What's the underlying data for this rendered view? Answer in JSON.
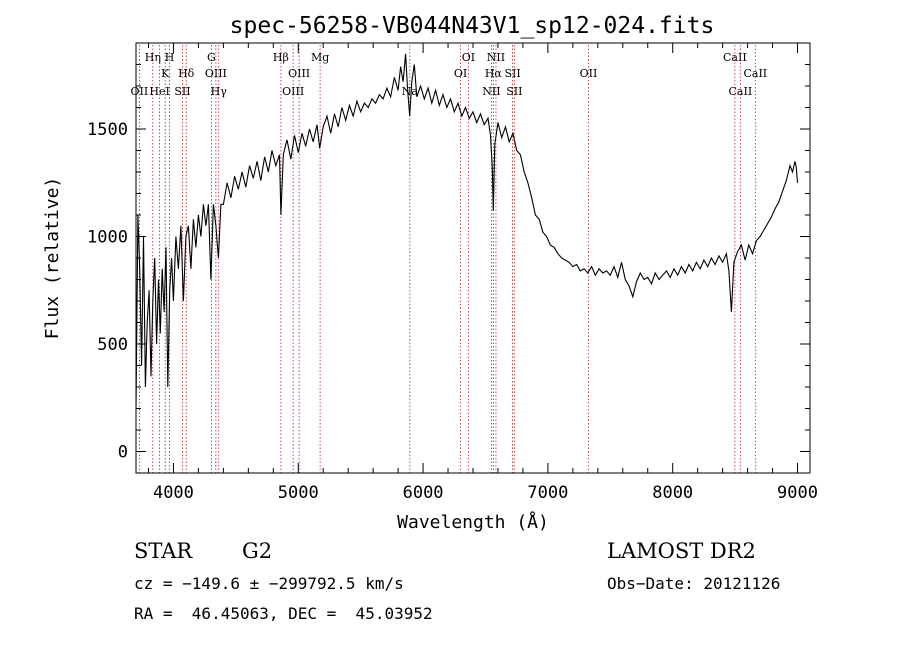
{
  "chart_data": {
    "type": "line",
    "title": "spec-56258-VB044N43V1_sp12-024.fits",
    "xlabel": "Wavelength (Å)",
    "ylabel": "Flux (relative)",
    "xlim": [
      3700,
      9100
    ],
    "ylim": [
      -100,
      1900
    ],
    "xticks": [
      4000,
      5000,
      6000,
      7000,
      8000,
      9000
    ],
    "yticks": [
      0,
      500,
      1000,
      1500
    ],
    "x_minor_step": 200,
    "y_minor_step": 100,
    "grid": false,
    "line_color": "#000000",
    "marker_color": "#b22222",
    "spectrum": [
      [
        3700,
        200
      ],
      [
        3715,
        1100
      ],
      [
        3730,
        850
      ],
      [
        3745,
        400
      ],
      [
        3760,
        1000
      ],
      [
        3775,
        300
      ],
      [
        3790,
        600
      ],
      [
        3805,
        750
      ],
      [
        3820,
        350
      ],
      [
        3835,
        700
      ],
      [
        3850,
        900
      ],
      [
        3865,
        500
      ],
      [
        3880,
        800
      ],
      [
        3895,
        550
      ],
      [
        3910,
        850
      ],
      [
        3925,
        650
      ],
      [
        3940,
        950
      ],
      [
        3955,
        300
      ],
      [
        3970,
        750
      ],
      [
        3985,
        900
      ],
      [
        4000,
        700
      ],
      [
        4020,
        1000
      ],
      [
        4040,
        850
      ],
      [
        4060,
        1050
      ],
      [
        4080,
        700
      ],
      [
        4100,
        1000
      ],
      [
        4120,
        1050
      ],
      [
        4140,
        850
      ],
      [
        4160,
        1080
      ],
      [
        4180,
        950
      ],
      [
        4200,
        1100
      ],
      [
        4220,
        1000
      ],
      [
        4240,
        1150
      ],
      [
        4260,
        1050
      ],
      [
        4280,
        1150
      ],
      [
        4300,
        800
      ],
      [
        4320,
        1150
      ],
      [
        4340,
        1050
      ],
      [
        4360,
        900
      ],
      [
        4380,
        1150
      ],
      [
        4400,
        1150
      ],
      [
        4430,
        1250
      ],
      [
        4460,
        1180
      ],
      [
        4490,
        1280
      ],
      [
        4520,
        1220
      ],
      [
        4550,
        1300
      ],
      [
        4580,
        1230
      ],
      [
        4610,
        1330
      ],
      [
        4640,
        1270
      ],
      [
        4670,
        1350
      ],
      [
        4700,
        1260
      ],
      [
        4730,
        1370
      ],
      [
        4760,
        1300
      ],
      [
        4790,
        1400
      ],
      [
        4820,
        1330
      ],
      [
        4850,
        1380
      ],
      [
        4861,
        1100
      ],
      [
        4880,
        1380
      ],
      [
        4910,
        1450
      ],
      [
        4940,
        1360
      ],
      [
        4970,
        1470
      ],
      [
        5000,
        1390
      ],
      [
        5030,
        1480
      ],
      [
        5060,
        1420
      ],
      [
        5090,
        1500
      ],
      [
        5120,
        1440
      ],
      [
        5150,
        1520
      ],
      [
        5172,
        1410
      ],
      [
        5200,
        1510
      ],
      [
        5230,
        1560
      ],
      [
        5260,
        1480
      ],
      [
        5290,
        1570
      ],
      [
        5320,
        1510
      ],
      [
        5350,
        1600
      ],
      [
        5380,
        1540
      ],
      [
        5410,
        1610
      ],
      [
        5440,
        1560
      ],
      [
        5470,
        1630
      ],
      [
        5500,
        1580
      ],
      [
        5530,
        1620
      ],
      [
        5560,
        1600
      ],
      [
        5590,
        1640
      ],
      [
        5620,
        1620
      ],
      [
        5650,
        1660
      ],
      [
        5680,
        1640
      ],
      [
        5710,
        1690
      ],
      [
        5740,
        1650
      ],
      [
        5770,
        1740
      ],
      [
        5800,
        1680
      ],
      [
        5820,
        1790
      ],
      [
        5840,
        1720
      ],
      [
        5860,
        1850
      ],
      [
        5875,
        1690
      ],
      [
        5893,
        1560
      ],
      [
        5910,
        1720
      ],
      [
        5930,
        1800
      ],
      [
        5950,
        1650
      ],
      [
        5980,
        1700
      ],
      [
        6010,
        1640
      ],
      [
        6040,
        1690
      ],
      [
        6070,
        1620
      ],
      [
        6100,
        1680
      ],
      [
        6130,
        1610
      ],
      [
        6160,
        1660
      ],
      [
        6190,
        1600
      ],
      [
        6220,
        1640
      ],
      [
        6250,
        1580
      ],
      [
        6280,
        1620
      ],
      [
        6310,
        1560
      ],
      [
        6340,
        1600
      ],
      [
        6370,
        1550
      ],
      [
        6400,
        1580
      ],
      [
        6430,
        1530
      ],
      [
        6460,
        1570
      ],
      [
        6490,
        1520
      ],
      [
        6520,
        1550
      ],
      [
        6540,
        1470
      ],
      [
        6555,
        1320
      ],
      [
        6563,
        1120
      ],
      [
        6575,
        1430
      ],
      [
        6600,
        1530
      ],
      [
        6630,
        1460
      ],
      [
        6660,
        1510
      ],
      [
        6690,
        1440
      ],
      [
        6720,
        1480
      ],
      [
        6750,
        1400
      ],
      [
        6780,
        1380
      ],
      [
        6810,
        1300
      ],
      [
        6840,
        1250
      ],
      [
        6870,
        1180
      ],
      [
        6900,
        1100
      ],
      [
        6930,
        1080
      ],
      [
        6960,
        1020
      ],
      [
        6990,
        1000
      ],
      [
        7020,
        960
      ],
      [
        7050,
        950
      ],
      [
        7080,
        920
      ],
      [
        7110,
        900
      ],
      [
        7140,
        890
      ],
      [
        7170,
        880
      ],
      [
        7200,
        860
      ],
      [
        7230,
        870
      ],
      [
        7260,
        840
      ],
      [
        7290,
        850
      ],
      [
        7320,
        830
      ],
      [
        7350,
        860
      ],
      [
        7380,
        820
      ],
      [
        7410,
        850
      ],
      [
        7440,
        830
      ],
      [
        7470,
        840
      ],
      [
        7500,
        820
      ],
      [
        7530,
        860
      ],
      [
        7560,
        810
      ],
      [
        7590,
        880
      ],
      [
        7620,
        800
      ],
      [
        7650,
        770
      ],
      [
        7680,
        720
      ],
      [
        7710,
        790
      ],
      [
        7740,
        830
      ],
      [
        7770,
        800
      ],
      [
        7800,
        810
      ],
      [
        7830,
        780
      ],
      [
        7860,
        830
      ],
      [
        7890,
        800
      ],
      [
        7920,
        820
      ],
      [
        7950,
        840
      ],
      [
        7980,
        810
      ],
      [
        8010,
        850
      ],
      [
        8040,
        820
      ],
      [
        8070,
        860
      ],
      [
        8100,
        830
      ],
      [
        8130,
        870
      ],
      [
        8160,
        840
      ],
      [
        8190,
        880
      ],
      [
        8220,
        850
      ],
      [
        8250,
        890
      ],
      [
        8280,
        860
      ],
      [
        8310,
        900
      ],
      [
        8340,
        870
      ],
      [
        8370,
        910
      ],
      [
        8400,
        880
      ],
      [
        8430,
        920
      ],
      [
        8450,
        840
      ],
      [
        8470,
        650
      ],
      [
        8490,
        880
      ],
      [
        8520,
        930
      ],
      [
        8550,
        960
      ],
      [
        8580,
        890
      ],
      [
        8610,
        960
      ],
      [
        8640,
        920
      ],
      [
        8670,
        980
      ],
      [
        8700,
        1000
      ],
      [
        8730,
        1030
      ],
      [
        8760,
        1060
      ],
      [
        8790,
        1090
      ],
      [
        8820,
        1130
      ],
      [
        8850,
        1160
      ],
      [
        8880,
        1210
      ],
      [
        8910,
        1260
      ],
      [
        8940,
        1330
      ],
      [
        8960,
        1300
      ],
      [
        8980,
        1350
      ],
      [
        8990,
        1320
      ],
      [
        9000,
        1250
      ]
    ],
    "lines": [
      {
        "label": "OII",
        "wavelength": 3727,
        "row": 3
      },
      {
        "label": "Hη",
        "wavelength": 3835,
        "row": 1
      },
      {
        "label": "HeI",
        "wavelength": 3889,
        "row": 3
      },
      {
        "label": "K",
        "wavelength": 3934,
        "row": 2
      },
      {
        "label": "H",
        "wavelength": 3969,
        "row": 1
      },
      {
        "label": "SII",
        "wavelength": 4072,
        "row": 3
      },
      {
        "label": "Hδ",
        "wavelength": 4102,
        "row": 2
      },
      {
        "label": "G",
        "wavelength": 4304,
        "row": 1
      },
      {
        "label": "OIII",
        "wavelength": 4340,
        "row": 2
      },
      {
        "label": "Hγ",
        "wavelength": 4363,
        "row": 3
      },
      {
        "label": "Hβ",
        "wavelength": 4861,
        "row": 1
      },
      {
        "label": "OIII",
        "wavelength": 4959,
        "row": 3
      },
      {
        "label": "OIII",
        "wavelength": 5007,
        "row": 2
      },
      {
        "label": "Mg",
        "wavelength": 5175,
        "row": 1
      },
      {
        "label": "Na",
        "wavelength": 5894,
        "row": 3
      },
      {
        "label": "OI",
        "wavelength": 6300,
        "row": 2
      },
      {
        "label": "OI",
        "wavelength": 6363,
        "row": 1
      },
      {
        "label": "NII",
        "wavelength": 6548,
        "row": 3
      },
      {
        "label": "Hα",
        "wavelength": 6563,
        "row": 2
      },
      {
        "label": "NII",
        "wavelength": 6584,
        "row": 1
      },
      {
        "label": "SII",
        "wavelength": 6717,
        "row": 2
      },
      {
        "label": "SII",
        "wavelength": 6731,
        "row": 3
      },
      {
        "label": "OII",
        "wavelength": 7325,
        "row": 2
      },
      {
        "label": "CaII",
        "wavelength": 8498,
        "row": 1
      },
      {
        "label": "CaII",
        "wavelength": 8542,
        "row": 3
      },
      {
        "label": "CaII",
        "wavelength": 8662,
        "row": 2
      }
    ]
  },
  "info": {
    "object_class": "STAR",
    "subclass": "G2",
    "survey": "LAMOST DR2",
    "redshift_line": "cz = −149.6 ± −299792.5 km/s",
    "obs_date": "Obs−Date: 20121126",
    "coords": "RA =  46.45063, DEC =  45.03952"
  }
}
